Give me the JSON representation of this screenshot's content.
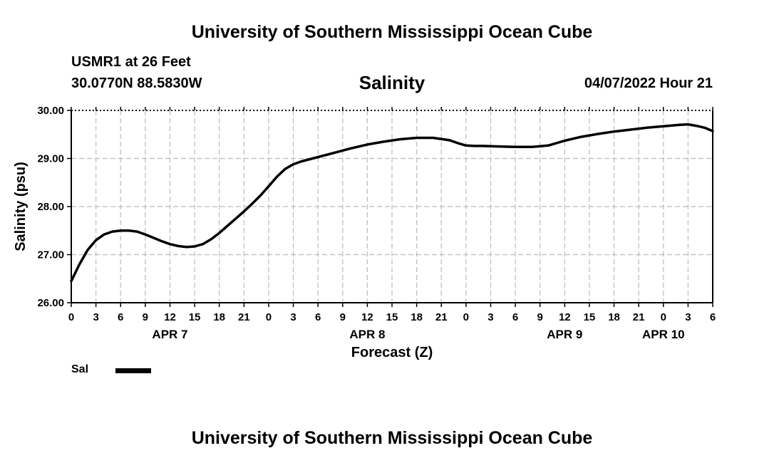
{
  "header": {
    "title": "University of Southern Mississippi Ocean Cube",
    "station": "USMR1 at 26 Feet",
    "coords": "30.0770N  88.5830W",
    "datetime": "04/07/2022 Hour 21"
  },
  "footer": {
    "title": "University of Southern Mississippi Ocean Cube"
  },
  "legend": {
    "label": "Sal",
    "color": "#000000"
  },
  "chart_data": {
    "type": "line",
    "title": "Salinity",
    "xlabel": "Forecast (Z)",
    "ylabel": "Salinity (psu)",
    "x_unit": "hours since APR 7 00Z",
    "xlim": [
      0,
      78
    ],
    "ylim": [
      26.0,
      30.0
    ],
    "grid": true,
    "x_tick_values": [
      0,
      3,
      6,
      9,
      12,
      15,
      18,
      21,
      24,
      27,
      30,
      33,
      36,
      39,
      42,
      45,
      48,
      51,
      54,
      57,
      60,
      63,
      66,
      69,
      72,
      75,
      78
    ],
    "x_tick_labels": [
      "0",
      "3",
      "6",
      "9",
      "12",
      "15",
      "18",
      "21",
      "0",
      "3",
      "6",
      "9",
      "12",
      "15",
      "18",
      "21",
      "0",
      "3",
      "6",
      "9",
      "12",
      "15",
      "18",
      "21",
      "0",
      "3",
      "6"
    ],
    "date_labels": [
      {
        "x": 12,
        "label": "APR 7"
      },
      {
        "x": 36,
        "label": "APR 8"
      },
      {
        "x": 60,
        "label": "APR 9"
      },
      {
        "x": 72,
        "label": "APR 10"
      }
    ],
    "y_tick_values": [
      26,
      27,
      28,
      29,
      30
    ],
    "y_tick_labels": [
      "26.00",
      "27.00",
      "28.00",
      "29.00",
      "30.00"
    ],
    "series": [
      {
        "name": "Sal",
        "x": [
          0,
          1,
          2,
          3,
          4,
          5,
          6,
          7,
          8,
          9,
          10,
          11,
          12,
          13,
          14,
          15,
          16,
          17,
          18,
          19,
          20,
          21,
          22,
          23,
          24,
          25,
          26,
          27,
          28,
          30,
          32,
          34,
          36,
          38,
          40,
          42,
          44,
          46,
          47,
          48,
          49,
          50,
          52,
          54,
          56,
          58,
          60,
          61,
          62,
          64,
          66,
          68,
          70,
          72,
          74,
          75,
          76,
          77,
          78
        ],
        "values": [
          26.45,
          26.8,
          27.1,
          27.3,
          27.42,
          27.48,
          27.5,
          27.5,
          27.48,
          27.42,
          27.35,
          27.28,
          27.22,
          27.18,
          27.16,
          27.17,
          27.22,
          27.32,
          27.45,
          27.6,
          27.75,
          27.9,
          28.06,
          28.23,
          28.42,
          28.62,
          28.78,
          28.88,
          28.94,
          29.03,
          29.12,
          29.21,
          29.29,
          29.35,
          29.4,
          29.43,
          29.43,
          29.38,
          29.32,
          29.27,
          29.26,
          29.26,
          29.25,
          29.24,
          29.24,
          29.27,
          29.37,
          29.41,
          29.45,
          29.51,
          29.56,
          29.6,
          29.64,
          29.67,
          29.7,
          29.71,
          29.68,
          29.64,
          29.57
        ]
      }
    ]
  }
}
